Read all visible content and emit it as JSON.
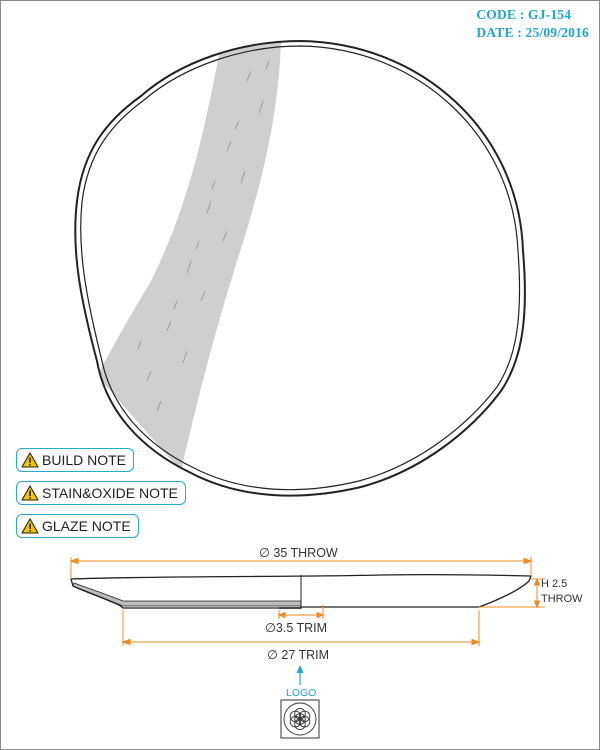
{
  "header": {
    "code": "CODE : GJ-154",
    "date": "DATE : 25/09/2016"
  },
  "notes": [
    {
      "label": "BUILD NOTE",
      "icon": "warning-icon"
    },
    {
      "label": "STAIN&OXIDE NOTE",
      "icon": "warning-icon"
    },
    {
      "label": "GLAZE NOTE",
      "icon": "warning-icon"
    }
  ],
  "dimensions": {
    "throw_diameter": "∅ 35 THROW",
    "height_line1": "H 2.5",
    "height_line2": "THROW",
    "foot_trim": "∅3.5 TRIM",
    "trim_diameter": "∅ 27 TRIM"
  },
  "logo": {
    "label": "LOGO",
    "icon": "flower-of-life-icon"
  },
  "colors": {
    "accent": "#1fa6c9",
    "dimension": "#f08a24",
    "outline": "#222222",
    "glaze": "#cfcfcf"
  }
}
